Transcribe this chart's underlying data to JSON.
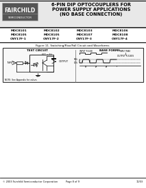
{
  "bg_color": "#f0f0f0",
  "page_bg": "#f5f5f5",
  "header_bg": "#e0e0e0",
  "logo_bg": "#606060",
  "logo_text1": "FAIRCHILD",
  "logo_text2": "SEMICONDUCTOR",
  "title_line1": "6-PIN DIP OPTOCOUPLERS FOR",
  "title_line2": "POWER SUPPLY APPLICATIONS",
  "title_line3": "(NO BASE CONNECTION)",
  "part_numbers": [
    [
      "MOC8101",
      "MOC8102",
      "MOC8103",
      "MOC8106"
    ],
    [
      "MOC8105",
      "MOC8105",
      "MOC8107",
      "MOC8108"
    ],
    [
      "CNY17F-1",
      "CNY17F-2",
      "CNY17F-3",
      "CNY17F-4"
    ]
  ],
  "figure_caption": "Figure 11. Switching/Rise/Fall Circuit and Waveforms",
  "left_label": "TEST CIRCUIT",
  "right_label": "BASE FORMS",
  "footer_left": "© 2003 Fairchild Semiconductor Corporation",
  "footer_center": "Page 8 of 9",
  "footer_right": "10/03"
}
